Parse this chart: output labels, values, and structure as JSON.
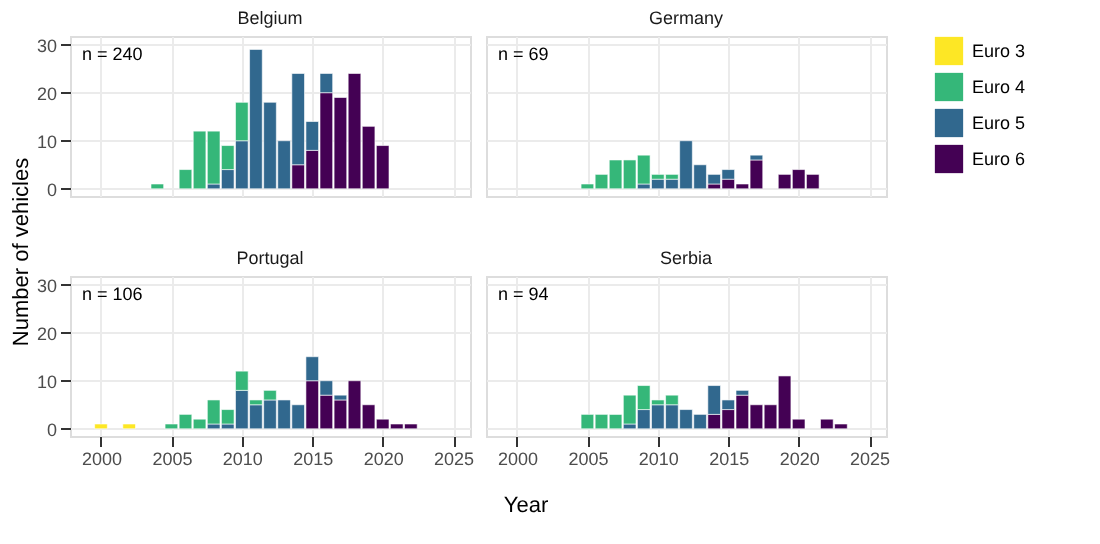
{
  "chart_data": [
    {
      "type": "bar",
      "stacked": true,
      "title": "Belgium",
      "ylabel": "Number of vehicles",
      "annotations": [
        "n = 240"
      ],
      "x": [
        2004,
        2006,
        2007,
        2008,
        2009,
        2010,
        2011,
        2012,
        2013,
        2014,
        2015,
        2016,
        2017,
        2018,
        2019,
        2020
      ],
      "series": [
        {
          "color": "#440154",
          "values": [
            null,
            null,
            null,
            null,
            null,
            null,
            null,
            null,
            null,
            5,
            8,
            20,
            19,
            24,
            13,
            9
          ]
        },
        {
          "color": "#31688e",
          "values": [
            null,
            null,
            null,
            1,
            4,
            10,
            29,
            18,
            10,
            19,
            6,
            4,
            null,
            null,
            null,
            null
          ]
        },
        {
          "color": "#35b779",
          "values": [
            1,
            4,
            12,
            11,
            5,
            8,
            null,
            null,
            null,
            null,
            null,
            null,
            null,
            null,
            null,
            null
          ]
        }
      ],
      "xlim": [
        1997.8,
        2026.2
      ],
      "xticks": [
        2000,
        2005,
        2010,
        2015,
        2020,
        2025
      ],
      "ylim": [
        -1.5,
        31.8
      ],
      "yticks": [
        0,
        10,
        20,
        30
      ],
      "grid": true,
      "tick_labels": "y"
    },
    {
      "type": "bar",
      "stacked": true,
      "title": "Germany",
      "annotations": [
        "n = 69"
      ],
      "x": [
        2005,
        2006,
        2007,
        2008,
        2009,
        2010,
        2011,
        2012,
        2013,
        2014,
        2015,
        2016,
        2017,
        2019,
        2020,
        2021
      ],
      "series": [
        {
          "color": "#440154",
          "values": [
            null,
            null,
            null,
            null,
            null,
            null,
            null,
            null,
            null,
            1,
            2,
            1,
            6,
            3,
            4,
            3
          ]
        },
        {
          "color": "#31688e",
          "values": [
            null,
            null,
            null,
            null,
            1,
            2,
            2,
            10,
            5,
            2,
            2,
            null,
            1,
            null,
            null,
            null
          ]
        },
        {
          "color": "#35b779",
          "values": [
            1,
            3,
            6,
            6,
            6,
            1,
            1,
            null,
            null,
            null,
            null,
            null,
            null,
            null,
            null,
            null
          ]
        }
      ],
      "xlim": [
        1997.8,
        2026.2
      ],
      "xticks": [
        2000,
        2005,
        2010,
        2015,
        2020,
        2025
      ],
      "ylim": [
        -1.5,
        31.8
      ],
      "yticks": [
        0,
        10,
        20,
        30
      ],
      "grid": true,
      "tick_labels": false
    },
    {
      "type": "bar",
      "stacked": true,
      "title": "Portugal",
      "xlabel": "Year",
      "annotations": [
        "n = 106"
      ],
      "x": [
        2000,
        2002,
        2005,
        2006,
        2007,
        2008,
        2009,
        2010,
        2011,
        2012,
        2013,
        2014,
        2015,
        2016,
        2017,
        2018,
        2019,
        2020,
        2021,
        2022
      ],
      "series": [
        {
          "name": "Euro 6",
          "color": "#440154",
          "values": [
            null,
            null,
            null,
            null,
            null,
            null,
            null,
            null,
            null,
            null,
            null,
            null,
            10,
            7,
            6,
            10,
            5,
            2,
            1,
            1
          ]
        },
        {
          "name": "Euro 5",
          "color": "#31688e",
          "values": [
            null,
            null,
            null,
            null,
            null,
            1,
            1,
            8,
            5,
            6,
            6,
            5,
            5,
            3,
            1,
            null,
            null,
            null,
            null,
            null
          ]
        },
        {
          "name": "Euro 4",
          "color": "#35b779",
          "values": [
            null,
            null,
            1,
            3,
            2,
            5,
            3,
            4,
            1,
            2,
            null,
            null,
            null,
            null,
            null,
            null,
            null,
            null,
            null,
            null
          ]
        },
        {
          "name": "Euro 3",
          "color": "#fde725",
          "values": [
            1,
            1,
            null,
            null,
            null,
            null,
            null,
            null,
            null,
            null,
            null,
            null,
            null,
            null,
            null,
            null,
            null,
            null,
            null,
            null
          ]
        }
      ],
      "xlim": [
        1997.8,
        2026.2
      ],
      "xticks": [
        2000,
        2005,
        2010,
        2015,
        2020,
        2025
      ],
      "ylim": [
        -1.5,
        31.8
      ],
      "yticks": [
        0,
        10,
        20,
        30
      ],
      "grid": true,
      "legend": "right"
    },
    {
      "type": "bar",
      "stacked": true,
      "title": "Serbia",
      "annotations": [
        "n = 94"
      ],
      "x": [
        2005,
        2006,
        2007,
        2008,
        2009,
        2010,
        2011,
        2012,
        2013,
        2014,
        2015,
        2016,
        2017,
        2018,
        2019,
        2020,
        2022,
        2023
      ],
      "series": [
        {
          "color": "#440154",
          "values": [
            null,
            null,
            null,
            null,
            null,
            null,
            null,
            null,
            null,
            3,
            4,
            7,
            5,
            5,
            11,
            2,
            2,
            1
          ]
        },
        {
          "color": "#31688e",
          "values": [
            null,
            null,
            null,
            1,
            4,
            5,
            5,
            4,
            3,
            6,
            2,
            1,
            null,
            null,
            null,
            null,
            null,
            null
          ]
        },
        {
          "color": "#35b779",
          "values": [
            3,
            3,
            3,
            6,
            5,
            1,
            2,
            null,
            null,
            null,
            null,
            null,
            null,
            null,
            null,
            null,
            null,
            null
          ]
        }
      ],
      "xlim": [
        1997.8,
        2026.2
      ],
      "xticks": [
        2000,
        2005,
        2010,
        2015,
        2020,
        2025
      ],
      "ylim": [
        -1.5,
        31.8
      ],
      "yticks": [
        0,
        10,
        20,
        30
      ],
      "grid": true,
      "tick_labels": "x"
    }
  ]
}
